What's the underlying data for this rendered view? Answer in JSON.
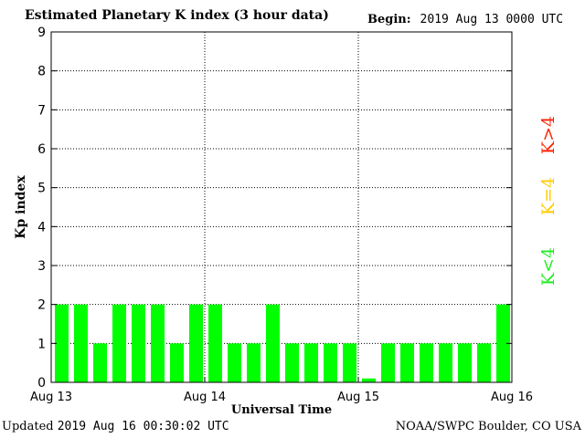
{
  "header": {
    "title": "Estimated Planetary K index (3 hour data)",
    "begin_label": "Begin:",
    "begin_value": "2019 Aug 13 0000 UTC"
  },
  "footer": {
    "updated_label": "Updated",
    "updated_value": "2019 Aug 16 00:30:02 UTC",
    "source": "NOAA/SWPC Boulder, CO USA"
  },
  "legend": [
    {
      "label": "K>4",
      "color": "#ff2200"
    },
    {
      "label": "K=4",
      "color": "#ffcc00"
    },
    {
      "label": "K<4",
      "color": "#22ee22"
    }
  ],
  "chart_data": {
    "type": "bar",
    "title": "Estimated Planetary K index (3 hour data)",
    "xlabel": "Universal Time",
    "ylabel": "Kp index",
    "ylim": [
      0,
      9
    ],
    "yticks": [
      0,
      1,
      2,
      3,
      4,
      5,
      6,
      7,
      8,
      9
    ],
    "xticks": [
      "Aug 13",
      "Aug 14",
      "Aug 15",
      "Aug 16"
    ],
    "grid": true,
    "bar_color": "#00ff00",
    "values": [
      2,
      2,
      1,
      2,
      2,
      2,
      1,
      2,
      2,
      1,
      1,
      2,
      1,
      1,
      1,
      1,
      0.1,
      1,
      1,
      1,
      1,
      1,
      1,
      2
    ]
  }
}
